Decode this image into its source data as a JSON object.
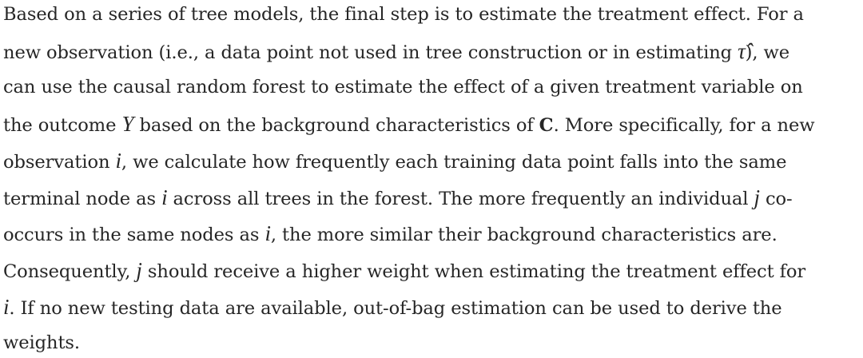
{
  "paragraph": {
    "lines": [
      [
        {
          "text": "Based on a series of tree models, the final step is to estimate the treatment effect. For a"
        }
      ],
      [
        {
          "text": "new observation (i.e., a data point not used in tree construction or in estimating "
        },
        {
          "math": "τ̂"
        },
        {
          "text": "), we"
        }
      ],
      [
        {
          "text": "can use the causal random forest to estimate the effect of a given treatment variable on"
        }
      ],
      [
        {
          "text": "the outcome "
        },
        {
          "math": "Y"
        },
        {
          "text": " based on the background characteristics of "
        },
        {
          "bold": "C"
        },
        {
          "text": ". More specifically, for a new"
        }
      ],
      [
        {
          "text": "observation "
        },
        {
          "math": "i"
        },
        {
          "text": ", we calculate how frequently each training data point falls into the same"
        }
      ],
      [
        {
          "text": "terminal node as "
        },
        {
          "math": "i"
        },
        {
          "text": " across all trees in the forest. The more frequently an individual "
        },
        {
          "math": "j"
        },
        {
          "text": " co-"
        }
      ],
      [
        {
          "text": "occurs in the same nodes as "
        },
        {
          "math": "i"
        },
        {
          "text": ", the more similar their background characteristics are."
        }
      ],
      [
        {
          "text": "Consequently, "
        },
        {
          "math": "j"
        },
        {
          "text": " should receive a higher weight when estimating the treatment effect for"
        }
      ],
      [
        {
          "math": "i"
        },
        {
          "text": ". If no new testing data are available, out-of-bag estimation can be used to derive the"
        }
      ],
      [
        {
          "text": "weights."
        }
      ]
    ]
  }
}
